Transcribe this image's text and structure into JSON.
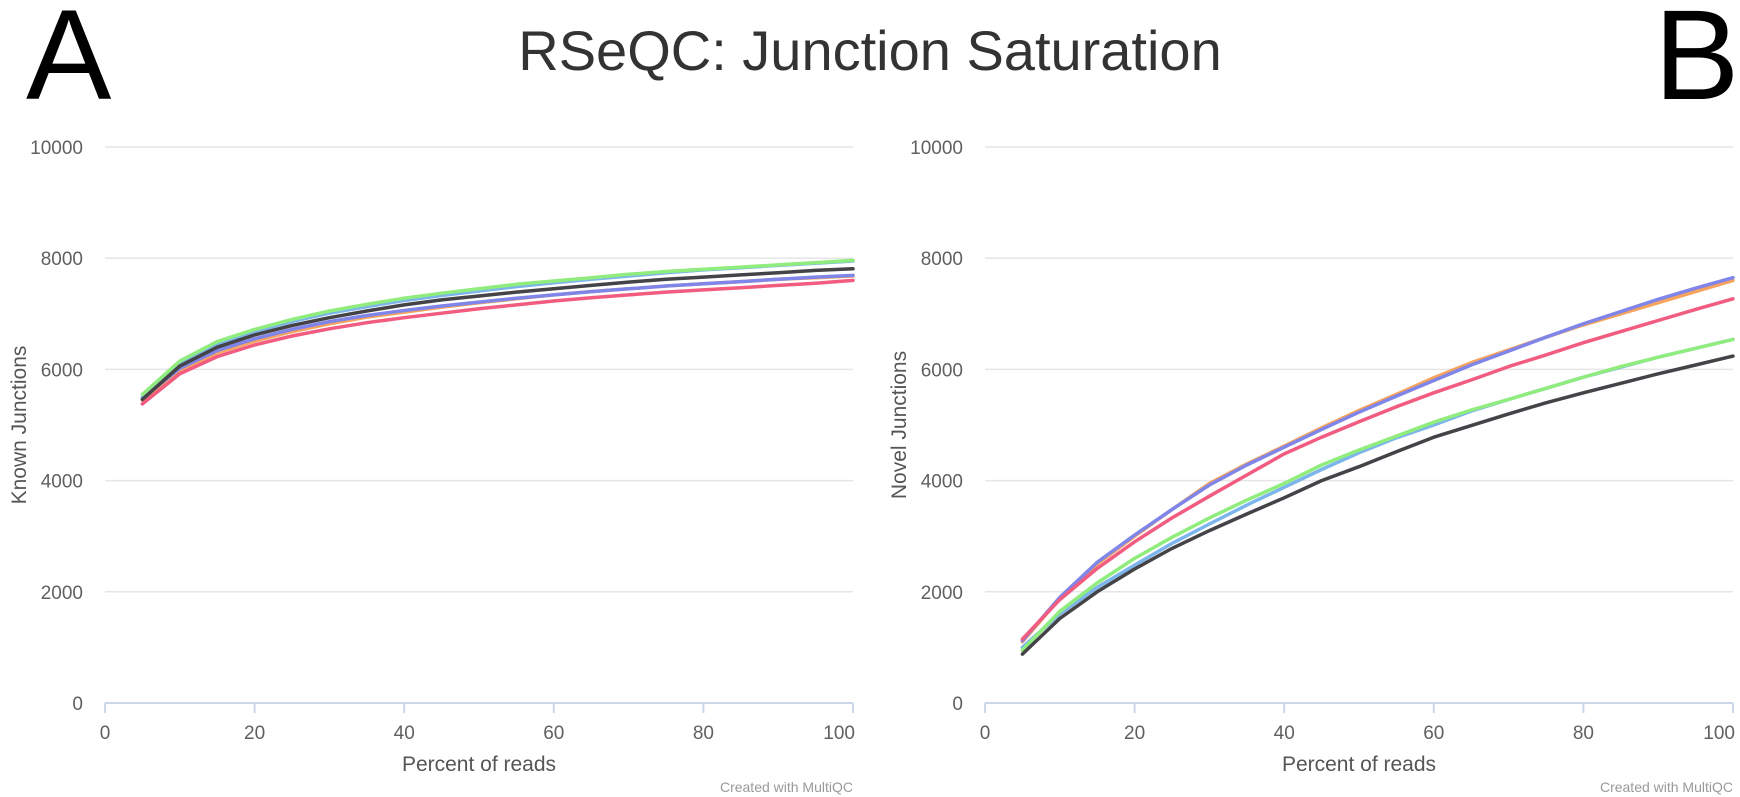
{
  "panel_labels": {
    "left": "A",
    "right": "B"
  },
  "title": "RSeQC: Junction Saturation",
  "credit": "Created with MultiQC",
  "colors": [
    "#f7a35c",
    "#8085e9",
    "#7cb5ec",
    "#90ed7d",
    "#434348",
    "#f15c80"
  ],
  "chart_data": [
    {
      "type": "line",
      "title": "RSeQC: Junction Saturation",
      "xlabel": "Percent of reads",
      "ylabel": "Known Junctions",
      "xlim": [
        0,
        100
      ],
      "ylim": [
        0,
        10000
      ],
      "xticks": [
        0,
        20,
        40,
        60,
        80,
        100
      ],
      "yticks": [
        0,
        2000,
        4000,
        6000,
        8000,
        10000
      ],
      "grid": true,
      "x": [
        5,
        10,
        15,
        20,
        25,
        30,
        35,
        40,
        45,
        50,
        55,
        60,
        65,
        70,
        75,
        80,
        85,
        90,
        95,
        100
      ],
      "series": [
        {
          "color": "#f7a35c",
          "values": [
            5450,
            5980,
            6300,
            6510,
            6680,
            6820,
            6940,
            7030,
            7120,
            7200,
            7270,
            7340,
            7400,
            7450,
            7500,
            7540,
            7580,
            7620,
            7650,
            7680
          ]
        },
        {
          "color": "#8085e9",
          "values": [
            5480,
            6020,
            6340,
            6550,
            6720,
            6860,
            6970,
            7060,
            7140,
            7210,
            7280,
            7340,
            7400,
            7450,
            7500,
            7540,
            7580,
            7620,
            7660,
            7690
          ]
        },
        {
          "color": "#7cb5ec",
          "values": [
            5500,
            6100,
            6450,
            6680,
            6860,
            7010,
            7130,
            7240,
            7330,
            7410,
            7490,
            7560,
            7620,
            7680,
            7740,
            7790,
            7830,
            7870,
            7910,
            7950
          ]
        },
        {
          "color": "#90ed7d",
          "values": [
            5550,
            6150,
            6500,
            6720,
            6900,
            7050,
            7170,
            7280,
            7370,
            7450,
            7530,
            7590,
            7650,
            7710,
            7760,
            7800,
            7840,
            7880,
            7920,
            7960
          ]
        },
        {
          "color": "#434348",
          "values": [
            5460,
            6060,
            6400,
            6620,
            6790,
            6930,
            7050,
            7160,
            7250,
            7320,
            7390,
            7450,
            7510,
            7570,
            7620,
            7660,
            7700,
            7740,
            7780,
            7810
          ]
        },
        {
          "color": "#f15c80",
          "values": [
            5380,
            5920,
            6230,
            6440,
            6600,
            6730,
            6840,
            6930,
            7010,
            7090,
            7160,
            7230,
            7290,
            7340,
            7390,
            7430,
            7470,
            7510,
            7550,
            7600
          ]
        }
      ]
    },
    {
      "type": "line",
      "title": "RSeQC: Junction Saturation",
      "xlabel": "Percent of reads",
      "ylabel": "Novel Junctions",
      "xlim": [
        0,
        100
      ],
      "ylim": [
        0,
        10000
      ],
      "xticks": [
        0,
        20,
        40,
        60,
        80,
        100
      ],
      "yticks": [
        0,
        2000,
        4000,
        6000,
        8000,
        10000
      ],
      "grid": true,
      "x": [
        5,
        10,
        15,
        20,
        25,
        30,
        35,
        40,
        45,
        50,
        55,
        60,
        65,
        70,
        75,
        80,
        85,
        90,
        95,
        100
      ],
      "series": [
        {
          "color": "#f7a35c",
          "values": [
            1100,
            1880,
            2500,
            3000,
            3480,
            3950,
            4300,
            4620,
            4950,
            5260,
            5550,
            5850,
            6120,
            6350,
            6580,
            6800,
            7000,
            7200,
            7400,
            7600
          ]
        },
        {
          "color": "#8085e9",
          "values": [
            1120,
            1900,
            2530,
            3020,
            3480,
            3920,
            4280,
            4600,
            4920,
            5230,
            5520,
            5800,
            6080,
            6330,
            6580,
            6820,
            7040,
            7260,
            7460,
            7650
          ]
        },
        {
          "color": "#7cb5ec",
          "values": [
            1000,
            1600,
            2080,
            2480,
            2870,
            3220,
            3560,
            3880,
            4200,
            4500,
            4770,
            5000,
            5250,
            5460,
            5660,
            5860,
            6040,
            6220,
            6380,
            6540
          ]
        },
        {
          "color": "#90ed7d",
          "values": [
            950,
            1650,
            2160,
            2600,
            2980,
            3330,
            3650,
            3950,
            4280,
            4550,
            4800,
            5050,
            5270,
            5460,
            5660,
            5860,
            6050,
            6220,
            6380,
            6540
          ]
        },
        {
          "color": "#434348",
          "values": [
            880,
            1520,
            2000,
            2410,
            2780,
            3100,
            3400,
            3690,
            4000,
            4250,
            4520,
            4780,
            4990,
            5200,
            5400,
            5580,
            5750,
            5920,
            6080,
            6240
          ]
        },
        {
          "color": "#f15c80",
          "values": [
            1150,
            1860,
            2420,
            2900,
            3330,
            3720,
            4100,
            4480,
            4780,
            5060,
            5330,
            5580,
            5810,
            6050,
            6260,
            6480,
            6680,
            6880,
            7080,
            7270
          ]
        }
      ]
    }
  ]
}
